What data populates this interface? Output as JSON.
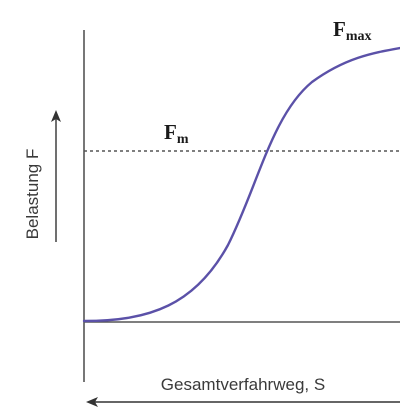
{
  "diagram": {
    "y_axis_label": "Belastung F",
    "x_axis_label": "Gesamtverfahrweg, S",
    "fmax_label": {
      "main": "F",
      "sub": "max"
    },
    "fm_label": {
      "main": "F",
      "sub": "m"
    },
    "colors": {
      "curve": "#5b51a8",
      "axes": "#555555",
      "dashed_line": "#555555",
      "text": "#3a3a3a"
    }
  }
}
